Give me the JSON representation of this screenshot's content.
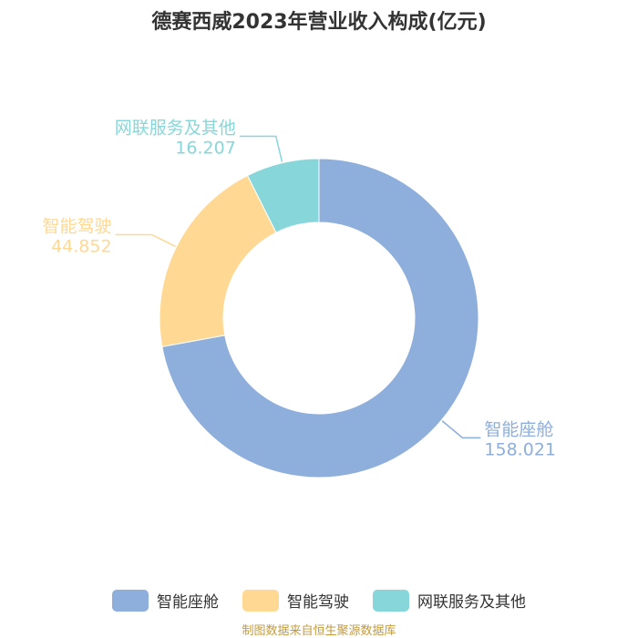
{
  "chart_data": {
    "type": "pie",
    "title": "德赛西威2023年营业收入构成(亿元)",
    "donut": true,
    "categories": [
      "智能座舱",
      "智能驾驶",
      "网联服务及其他"
    ],
    "values": [
      158.021,
      44.852,
      16.207
    ],
    "value_labels": [
      "158.021",
      "44.852",
      "16.207"
    ],
    "colors": [
      "#8eaedb",
      "#ffd894",
      "#87d7da"
    ],
    "legend_position": "bottom"
  },
  "legend": {
    "items": [
      {
        "label": "智能座舱",
        "color": "#8eaedb"
      },
      {
        "label": "智能驾驶",
        "color": "#ffd894"
      },
      {
        "label": "网联服务及其他",
        "color": "#87d7da"
      }
    ]
  },
  "source": "制图数据来自恒生聚源数据库"
}
